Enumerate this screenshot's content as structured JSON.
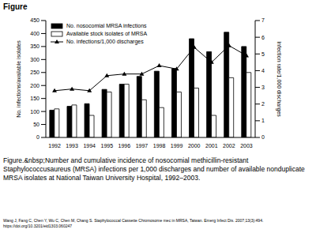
{
  "header": "Figure",
  "chart_data": {
    "type": "bar",
    "categories": [
      "1992",
      "1993",
      "1994",
      "1995",
      "1996",
      "1997",
      "1998",
      "1999",
      "2000",
      "2001",
      "2002",
      "2003"
    ],
    "series": [
      {
        "name": "No. nosocomial MRSA infections",
        "type": "bar",
        "color": "#000000",
        "values": [
          105,
          120,
          130,
          185,
          205,
          235,
          255,
          265,
          380,
          330,
          405,
          350
        ]
      },
      {
        "name": "Available stock isolates of MRSA",
        "type": "bar",
        "color": "#ffffff",
        "values": [
          110,
          125,
          85,
          175,
          205,
          145,
          115,
          175,
          190,
          85,
          230,
          250
        ]
      },
      {
        "name": "No. infections/1,000 discharges",
        "type": "line",
        "color": "#000000",
        "marker": "triangle",
        "axis": "y2",
        "values": [
          2.8,
          2.9,
          2.8,
          3.7,
          3.8,
          3.8,
          4.3,
          4.1,
          5.4,
          4.5,
          5.5,
          4.9
        ]
      }
    ],
    "y_label": "No. infections/available isolates",
    "y2_label": "Infection rate/1,000 discharges",
    "ylim": [
      0,
      450
    ],
    "yticks": [
      0,
      50,
      100,
      150,
      200,
      250,
      300,
      350,
      400,
      450
    ],
    "y2lim": [
      0,
      7
    ],
    "y2ticks": [
      0,
      1,
      2,
      3,
      4,
      5,
      6,
      7
    ],
    "legend": "upper left"
  },
  "caption": "Figure.&nbsp;Number and cumulative incidence of nosocomial methicillin-resistant Staphylococcusaureus (MRSA) infections per 1,000 discharges and number of available nonduplicate MRSA isolates at National Taiwan University Hospital, 1992–2003.",
  "citation": "Wang J, Fang C, Chen Y, Wu C, Chen M, Chang S. Staphylococcal Cassette Chromosome mec in MRSA, Taiwan. Emerg Infect Dis. 2007;13(3):494. https://doi.org/10.3201/eid1303.060247"
}
